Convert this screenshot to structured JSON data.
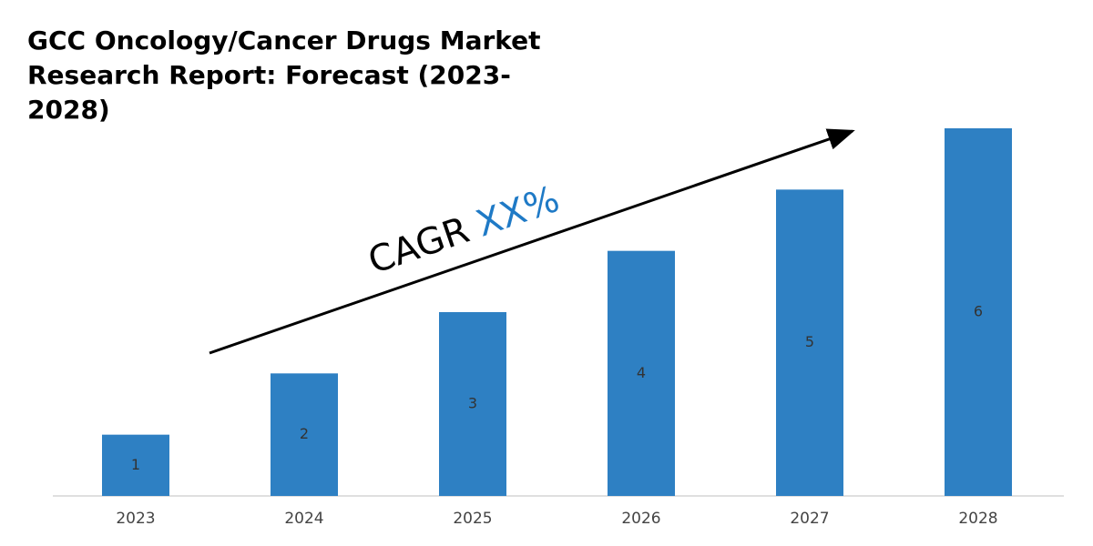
{
  "chart_data": {
    "type": "bar",
    "title": "GCC Oncology/Cancer Drugs Market Research Report: Forecast (2023-2028)",
    "annotation": {
      "text": "CAGR",
      "highlight": "XX%"
    },
    "categories": [
      "2023",
      "2024",
      "2025",
      "2026",
      "2027",
      "2028"
    ],
    "values": [
      1,
      2,
      3,
      4,
      5,
      6
    ],
    "color": "#2e80c3",
    "highlight_color": "#1f7ac6"
  }
}
